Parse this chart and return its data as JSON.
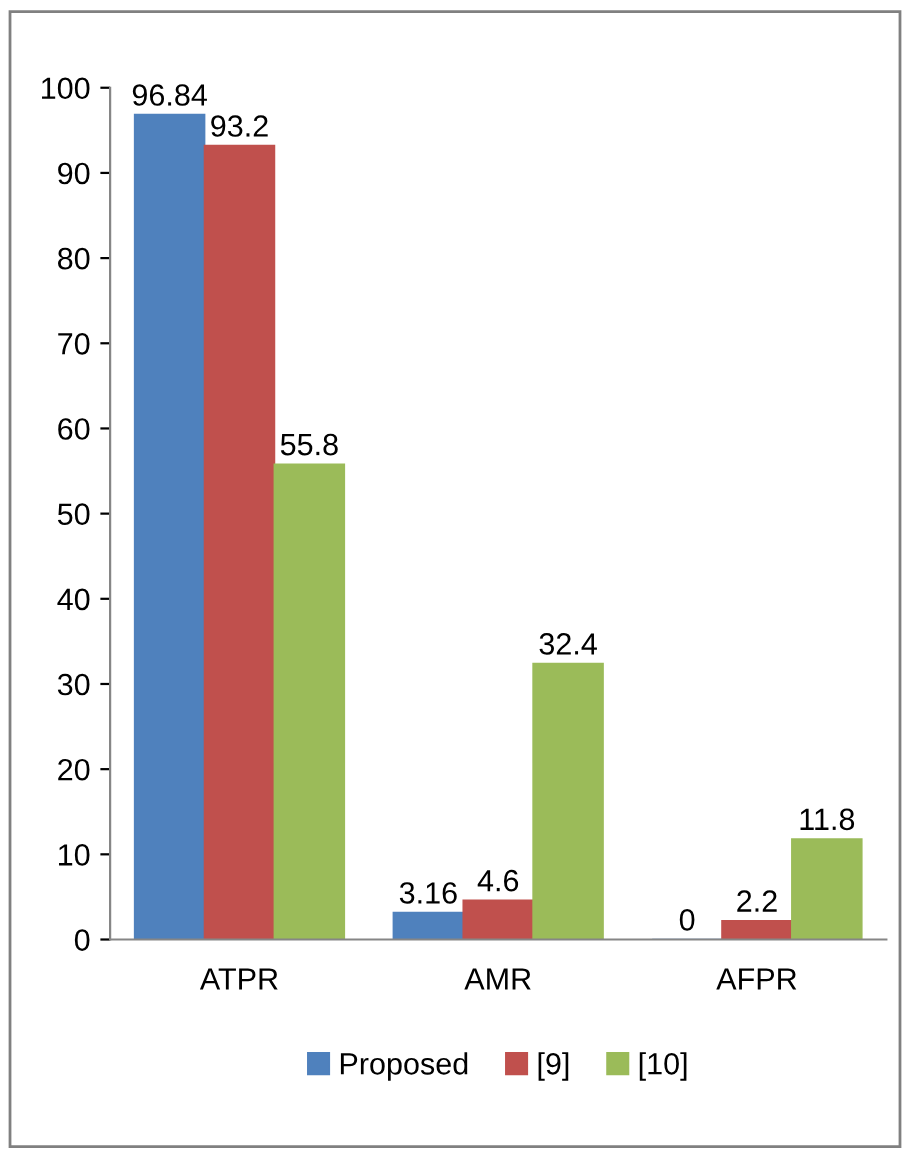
{
  "chart_data": {
    "type": "bar",
    "categories": [
      "ATPR",
      "AMR",
      "AFPR"
    ],
    "series": [
      {
        "name": "Proposed",
        "color": "#4f81bd",
        "values": [
          96.84,
          3.16,
          0
        ]
      },
      {
        "name": "[9]",
        "color": "#c0504d",
        "values": [
          93.2,
          4.6,
          2.2
        ]
      },
      {
        "name": "[10]",
        "color": "#9bbb59",
        "values": [
          55.8,
          32.4,
          11.8
        ]
      }
    ],
    "ylim": [
      0,
      100
    ],
    "yticks": [
      0,
      10,
      20,
      30,
      40,
      50,
      60,
      70,
      80,
      90,
      100
    ],
    "data_labels": true,
    "legend": "bottom",
    "grid": false
  }
}
